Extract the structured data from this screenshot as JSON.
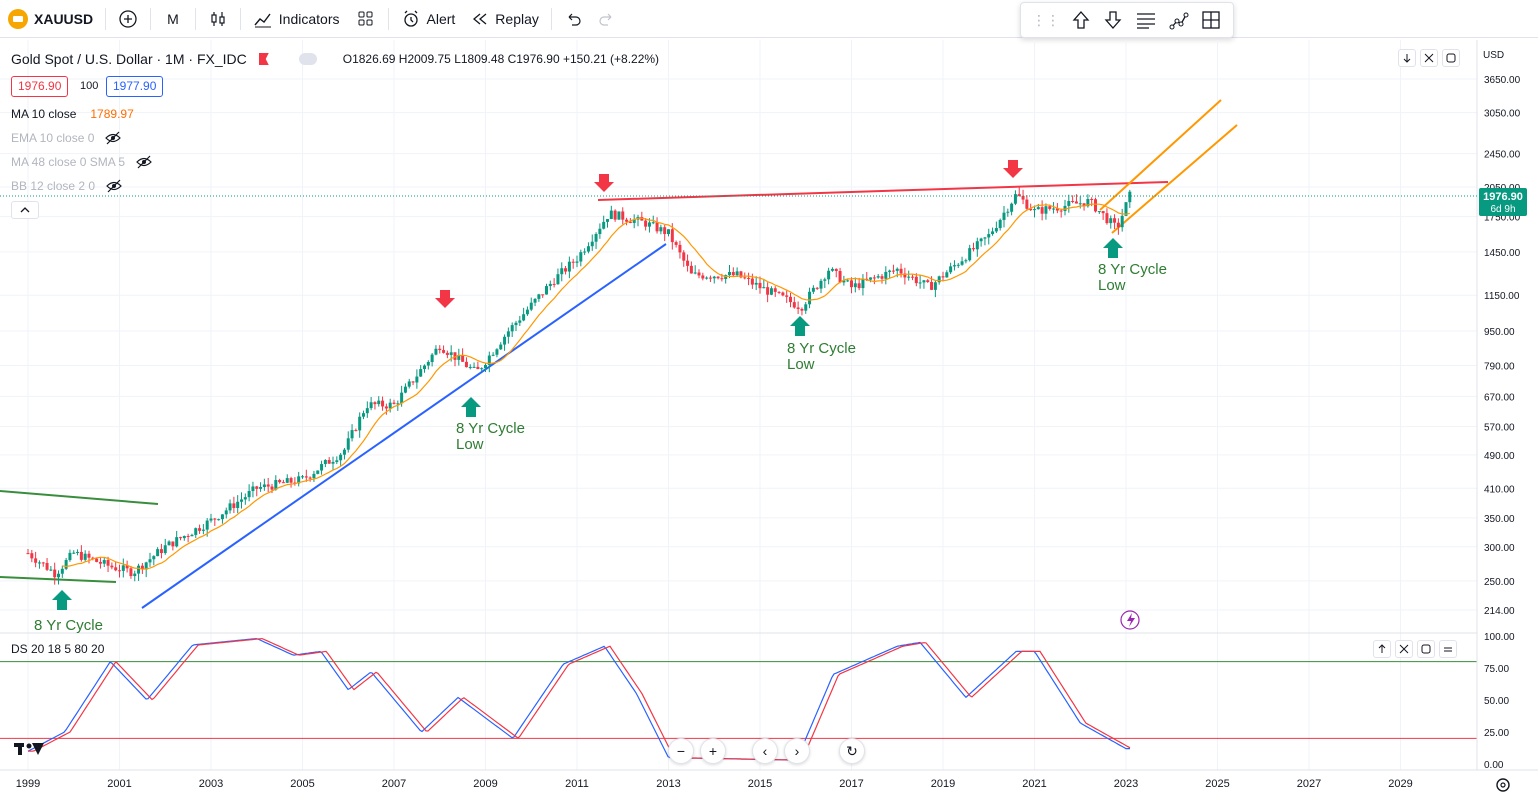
{
  "topbar": {
    "symbol": "XAUUSD",
    "interval": "M",
    "indicators_label": "Indicators",
    "alert_label": "Alert",
    "replay_label": "Replay"
  },
  "legend": {
    "title": "Gold Spot / U.S. Dollar · 1M · FX_IDC",
    "open": "O1826.69",
    "high": "H2009.75",
    "low": "L1809.48",
    "close": "C1976.90",
    "change": "+150.21 (+8.22%)",
    "bid": "1976.90",
    "spread": "100",
    "ask": "1977.90"
  },
  "indicators": [
    {
      "label": "MA 10 close",
      "value": "1789.97"
    },
    {
      "label": "EMA 10 close 0",
      "value": ""
    },
    {
      "label": "MA 48 close 0 SMA 5",
      "value": ""
    },
    {
      "label": "BB 12 close 2 0",
      "value": ""
    }
  ],
  "osc_label": "DS 20 18 5 80 20",
  "currency": "USD",
  "price_axis": [
    "3650.00",
    "3050.00",
    "2450.00",
    "2050.00",
    "1750.00",
    "1450.00",
    "1150.00",
    "950.00",
    "790.00",
    "670.00",
    "570.00",
    "490.00",
    "410.00",
    "350.00",
    "300.00",
    "250.00",
    "214.00"
  ],
  "osc_axis": [
    "100.00",
    "75.00",
    "50.00",
    "25.00",
    "0.00"
  ],
  "time_axis": [
    "1999",
    "2001",
    "2003",
    "2005",
    "2007",
    "2009",
    "2011",
    "2013",
    "2015",
    "2017",
    "2019",
    "2021",
    "2023",
    "2025",
    "2027",
    "2029"
  ],
  "last_price": "1976.90",
  "countdown": "6d 9h",
  "annotations": [
    {
      "line1": "8 Yr Cycle",
      "line2": ""
    },
    {
      "line1": "8 Yr Cycle",
      "line2": "Low"
    },
    {
      "line1": "8 Yr Cycle",
      "line2": "Low"
    },
    {
      "line1": "8 Yr Cycle",
      "line2": "Low"
    }
  ],
  "colors": {
    "up": "#089981",
    "down": "#f23645",
    "ma": "#ff9800",
    "blue_line": "#2962ff",
    "red_line": "#f23645",
    "green_line": "#388e3c",
    "orange_channel": "#ff9800",
    "osc_blue": "#2962ff",
    "osc_red": "#f23645",
    "price_label_bg": "#089981"
  },
  "chart_data": {
    "type": "candlestick",
    "title": "Gold Spot / U.S. Dollar · 1M · FX_IDC",
    "scale": "log",
    "ylim": [
      214,
      3650
    ],
    "x_range": [
      1999,
      2030
    ],
    "price_anchors": [
      {
        "x": 1999.0,
        "y": 290
      },
      {
        "x": 1999.6,
        "y": 260
      },
      {
        "x": 2000.0,
        "y": 290
      },
      {
        "x": 2000.8,
        "y": 270
      },
      {
        "x": 2001.3,
        "y": 262
      },
      {
        "x": 2002.0,
        "y": 300
      },
      {
        "x": 2003.0,
        "y": 345
      },
      {
        "x": 2004.0,
        "y": 410
      },
      {
        "x": 2005.0,
        "y": 430
      },
      {
        "x": 2005.9,
        "y": 500
      },
      {
        "x": 2006.4,
        "y": 640
      },
      {
        "x": 2007.0,
        "y": 640
      },
      {
        "x": 2008.0,
        "y": 880
      },
      {
        "x": 2008.8,
        "y": 760
      },
      {
        "x": 2009.5,
        "y": 950
      },
      {
        "x": 2010.5,
        "y": 1250
      },
      {
        "x": 2011.0,
        "y": 1400
      },
      {
        "x": 2011.7,
        "y": 1780
      },
      {
        "x": 2012.5,
        "y": 1690
      },
      {
        "x": 2013.0,
        "y": 1600
      },
      {
        "x": 2013.5,
        "y": 1280
      },
      {
        "x": 2014.5,
        "y": 1280
      },
      {
        "x": 2015.0,
        "y": 1200
      },
      {
        "x": 2015.9,
        "y": 1080
      },
      {
        "x": 2016.5,
        "y": 1320
      },
      {
        "x": 2017.0,
        "y": 1200
      },
      {
        "x": 2018.0,
        "y": 1320
      },
      {
        "x": 2018.7,
        "y": 1200
      },
      {
        "x": 2019.5,
        "y": 1420
      },
      {
        "x": 2020.0,
        "y": 1580
      },
      {
        "x": 2020.6,
        "y": 1970
      },
      {
        "x": 2021.0,
        "y": 1800
      },
      {
        "x": 2022.2,
        "y": 1900
      },
      {
        "x": 2022.8,
        "y": 1640
      },
      {
        "x": 2023.1,
        "y": 1976.9
      }
    ],
    "osc_anchors": [
      {
        "x": 1999.0,
        "y": 10
      },
      {
        "x": 1999.8,
        "y": 25
      },
      {
        "x": 2000.8,
        "y": 80
      },
      {
        "x": 2001.6,
        "y": 50
      },
      {
        "x": 2002.6,
        "y": 93
      },
      {
        "x": 2004.0,
        "y": 98
      },
      {
        "x": 2004.8,
        "y": 85
      },
      {
        "x": 2005.4,
        "y": 88
      },
      {
        "x": 2006.0,
        "y": 58
      },
      {
        "x": 2006.5,
        "y": 72
      },
      {
        "x": 2007.6,
        "y": 25
      },
      {
        "x": 2008.4,
        "y": 52
      },
      {
        "x": 2009.6,
        "y": 20
      },
      {
        "x": 2010.7,
        "y": 78
      },
      {
        "x": 2011.6,
        "y": 92
      },
      {
        "x": 2012.3,
        "y": 55
      },
      {
        "x": 2013.0,
        "y": 5
      },
      {
        "x": 2015.8,
        "y": 3
      },
      {
        "x": 2016.6,
        "y": 70
      },
      {
        "x": 2018.0,
        "y": 92
      },
      {
        "x": 2018.5,
        "y": 95
      },
      {
        "x": 2019.5,
        "y": 52
      },
      {
        "x": 2020.6,
        "y": 88
      },
      {
        "x": 2021.0,
        "y": 88
      },
      {
        "x": 2022.0,
        "y": 32
      },
      {
        "x": 2023.0,
        "y": 12
      }
    ]
  }
}
